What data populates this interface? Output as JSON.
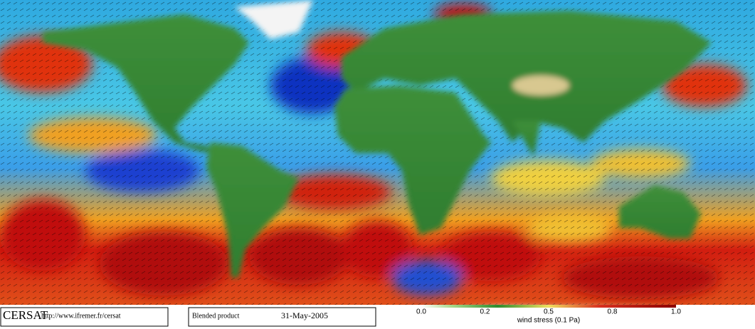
{
  "footer": {
    "logo": "CERSAT",
    "url": "http://www.ifremer.fr/cersat",
    "product": "Blended product",
    "date": "31-May-2005"
  },
  "colorbar": {
    "labels": [
      "0.0",
      "0.2",
      "0.5",
      "0.8",
      "1.0"
    ],
    "title": "wind stress (0.1 Pa)"
  }
}
